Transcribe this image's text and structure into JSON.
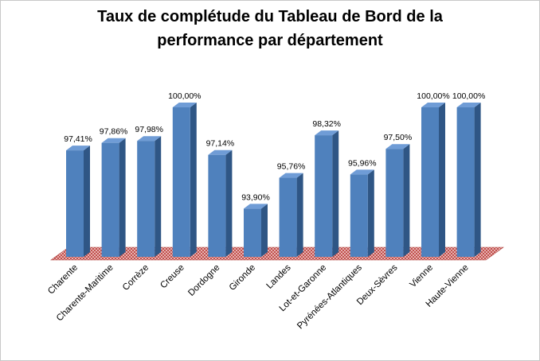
{
  "chart_data": {
    "type": "bar",
    "title_lines": [
      "Taux de complétude du Tableau  de Bord de la",
      "performance par département"
    ],
    "categories": [
      "Charente",
      "Charente-Maritime",
      "Corrèze",
      "Creuse",
      "Dordogne",
      "Gironde",
      "Landes",
      "Lot-et-Garonne",
      "Pyrénées-Atlantiques",
      "Deux-Sèvres",
      "Vienne",
      "Haute-Vienne"
    ],
    "values": [
      97.41,
      97.86,
      97.98,
      100.0,
      97.14,
      93.9,
      95.76,
      98.32,
      95.96,
      97.5,
      100.0,
      100.0
    ],
    "value_labels": [
      "97,41%",
      "97,86%",
      "97,98%",
      "100,00%",
      "97,14%",
      "93,90%",
      "95,76%",
      "98,32%",
      "95,96%",
      "97,50%",
      "100,00%",
      "100,00%"
    ],
    "ylim": [
      91,
      100
    ],
    "axes_visible": false,
    "grid": false,
    "bar_colors": {
      "front": "#4f81bd",
      "side": "#2f5685",
      "top": "#6f9cd6"
    },
    "floor_color": "#c0504d"
  }
}
